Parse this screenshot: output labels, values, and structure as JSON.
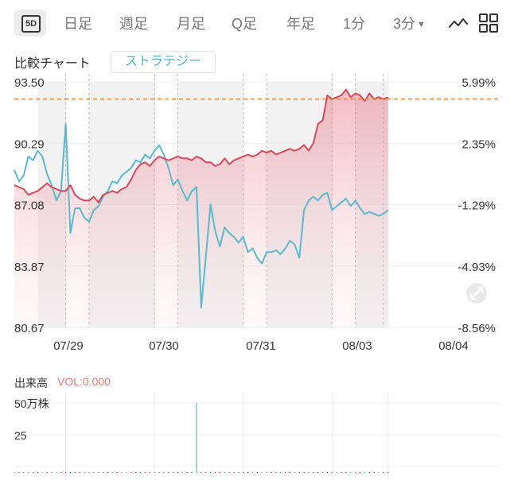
{
  "period_tabs": {
    "five_day": "5D",
    "daily": "日足",
    "weekly": "週足",
    "monthly": "月足",
    "quarterly": "Q足",
    "yearly": "年足",
    "one_min": "1分",
    "three_min": "3分"
  },
  "compare_label": "比較チャート",
  "strategy_button": "ストラテジー",
  "volume": {
    "title": "出来高",
    "value_text": "VOL:0.000",
    "tick_top": "50万株",
    "tick_mid": "25"
  },
  "colors": {
    "price_line": "#d6495a",
    "compare_line": "#5ab9cc",
    "reference_line": "#e8823c",
    "shaded_session": "#f2f2f3"
  },
  "chart_data": {
    "type": "line",
    "x_ticks": [
      "07/29",
      "07/30",
      "07/31",
      "08/03",
      "08/04"
    ],
    "y_left_ticks": [
      "93.50",
      "90.29",
      "87.08",
      "83.87",
      "80.67"
    ],
    "y_right_ticks": [
      "5.99%",
      "2.35%",
      "-1.29%",
      "-4.93%",
      "-8.56%"
    ],
    "ylim": [
      80.67,
      93.5
    ],
    "reference_value": 92.6,
    "x_points": [
      0,
      1,
      2,
      3,
      4,
      5,
      6,
      7,
      8,
      9,
      10,
      11,
      12,
      13,
      14,
      15,
      16,
      17,
      18,
      19,
      20,
      21,
      22,
      23,
      24,
      25,
      26,
      27,
      28,
      29,
      30,
      31,
      32,
      33,
      34,
      35,
      36,
      37,
      38,
      39,
      40,
      41,
      42,
      43,
      44,
      45,
      46,
      47,
      48,
      49,
      50,
      51,
      52,
      53,
      54,
      55,
      56,
      57,
      58,
      59,
      60,
      61,
      62,
      63,
      64,
      65,
      66,
      67,
      68,
      69,
      70,
      71,
      72,
      73,
      74,
      75,
      76,
      77,
      78,
      79,
      80
    ],
    "x_range": [
      0,
      94
    ],
    "day_boundaries": [
      11,
      30,
      49,
      68,
      80
    ],
    "session_dividers": [
      11,
      16,
      30,
      35,
      49,
      54,
      68,
      73,
      79
    ],
    "series": [
      {
        "values": [
          88.1,
          88.0,
          87.9,
          87.6,
          87.7,
          87.8,
          88.0,
          88.2,
          88.0,
          87.9,
          87.8,
          87.8,
          88.1,
          87.6,
          87.4,
          87.3,
          87.3,
          87.5,
          87.2,
          87.6,
          87.7,
          87.8,
          87.7,
          87.9,
          88.0,
          88.4,
          88.9,
          89.2,
          89.3,
          89.1,
          89.4,
          89.6,
          89.5,
          89.4,
          89.5,
          89.6,
          89.5,
          89.5,
          89.4,
          89.6,
          89.5,
          89.3,
          89.3,
          89.1,
          89.2,
          89.5,
          89.2,
          89.4,
          89.5,
          89.6,
          89.7,
          89.6,
          89.7,
          89.9,
          89.8,
          89.9,
          89.7,
          89.8,
          89.9,
          90.0,
          89.9,
          90.0,
          90.2,
          89.9,
          90.3,
          91.3,
          91.5,
          92.8,
          92.6,
          92.7,
          92.8,
          93.1,
          92.7,
          92.9,
          92.8,
          92.5,
          92.9,
          92.6,
          92.7,
          92.6,
          92.7
        ]
      },
      {
        "values": [
          88.9,
          88.3,
          88.6,
          89.6,
          89.4,
          89.9,
          89.6,
          88.7,
          88.1,
          87.3,
          87.8,
          91.3,
          85.6,
          86.9,
          86.9,
          86.4,
          86.2,
          86.8,
          87.0,
          87.5,
          87.8,
          88.3,
          88.2,
          88.6,
          88.8,
          89.0,
          89.4,
          89.3,
          89.7,
          89.5,
          89.9,
          90.2,
          89.7,
          89.0,
          88.1,
          88.4,
          87.8,
          87.3,
          87.8,
          88.0,
          81.7,
          84.4,
          87.1,
          85.7,
          84.9,
          85.9,
          85.6,
          85.4,
          85.1,
          85.4,
          84.6,
          84.8,
          84.3,
          84.0,
          84.6,
          84.6,
          84.7,
          84.5,
          84.8,
          85.2,
          85.0,
          84.3,
          86.8,
          87.3,
          87.5,
          87.3,
          87.6,
          87.7,
          86.8,
          87.0,
          87.2,
          87.4,
          87.0,
          87.3,
          86.9,
          86.6,
          86.7,
          86.6,
          86.5,
          86.6,
          86.8
        ]
      }
    ],
    "volume": {
      "ylim": [
        0,
        50
      ],
      "spike_at": 39,
      "spike_value": 50
    }
  }
}
